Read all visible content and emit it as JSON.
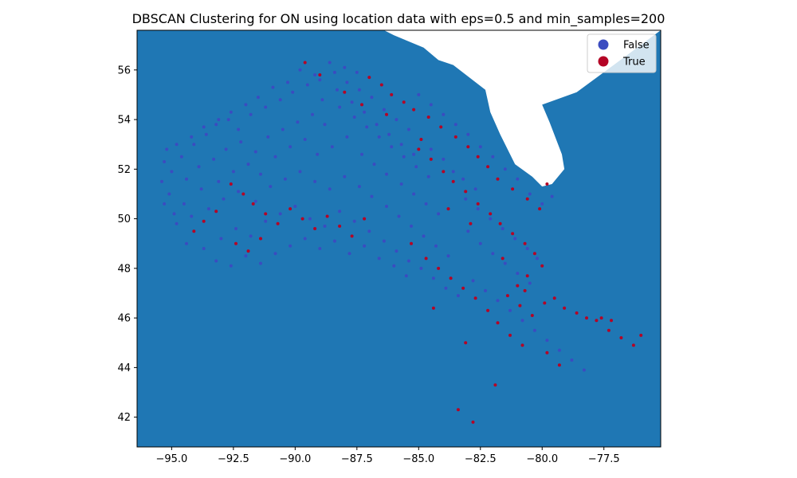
{
  "chart_data": {
    "type": "scatter",
    "title": "DBSCAN Clustering for ON using location data with eps=0.5 and min_samples=200",
    "xlabel": "",
    "ylabel": "",
    "xlim": [
      -96.4,
      -75.2
    ],
    "ylim": [
      40.8,
      57.6
    ],
    "xticks": [
      -95.0,
      -92.5,
      -90.0,
      -87.5,
      -85.0,
      -82.5,
      -80.0,
      -77.5
    ],
    "xtick_labels": [
      "−95.0",
      "−92.5",
      "−90.0",
      "−87.5",
      "−85.0",
      "−82.5",
      "−80.0",
      "−77.5"
    ],
    "yticks": [
      42,
      44,
      46,
      48,
      50,
      52,
      54,
      56
    ],
    "ytick_labels": [
      "42",
      "44",
      "46",
      "48",
      "50",
      "52",
      "54",
      "56"
    ],
    "grid": false,
    "legend_position": "top-right",
    "map_color": "#1f77b4",
    "map_outline": [
      [
        -96.4,
        57.6
      ],
      [
        -86.9,
        57.6
      ],
      [
        -86.4,
        57.6
      ],
      [
        -86.0,
        57.4
      ],
      [
        -84.8,
        56.9
      ],
      [
        -84.2,
        56.4
      ],
      [
        -83.6,
        56.2
      ],
      [
        -82.3,
        55.2
      ],
      [
        -82.1,
        54.3
      ],
      [
        -81.7,
        53.4
      ],
      [
        -81.1,
        52.2
      ],
      [
        -80.4,
        51.7
      ],
      [
        -80.0,
        51.3
      ],
      [
        -79.6,
        51.4
      ],
      [
        -79.1,
        52.0
      ],
      [
        -79.2,
        52.6
      ],
      [
        -79.7,
        53.9
      ],
      [
        -80.0,
        54.6
      ],
      [
        -78.6,
        55.1
      ],
      [
        -75.2,
        57.6
      ],
      [
        -75.2,
        40.8
      ],
      [
        -96.4,
        40.8
      ]
    ],
    "series": [
      {
        "name": "False",
        "color": "#3b4cc0",
        "points": [
          [
            -95.2,
            52.8
          ],
          [
            -94.6,
            52.5
          ],
          [
            -94.1,
            53.0
          ],
          [
            -93.6,
            53.4
          ],
          [
            -93.2,
            53.8
          ],
          [
            -92.7,
            54.0
          ],
          [
            -92.3,
            53.6
          ],
          [
            -91.8,
            54.2
          ],
          [
            -91.2,
            54.5
          ],
          [
            -90.6,
            54.8
          ],
          [
            -90.1,
            55.1
          ],
          [
            -89.5,
            55.4
          ],
          [
            -89.0,
            55.6
          ],
          [
            -88.4,
            55.9
          ],
          [
            -87.9,
            55.5
          ],
          [
            -87.4,
            55.2
          ],
          [
            -86.9,
            54.9
          ],
          [
            -86.4,
            54.4
          ],
          [
            -85.9,
            54.0
          ],
          [
            -85.4,
            53.6
          ],
          [
            -95.0,
            51.9
          ],
          [
            -94.4,
            51.6
          ],
          [
            -93.9,
            52.1
          ],
          [
            -93.3,
            52.4
          ],
          [
            -92.8,
            52.8
          ],
          [
            -92.2,
            53.1
          ],
          [
            -91.6,
            52.7
          ],
          [
            -91.1,
            53.3
          ],
          [
            -90.5,
            53.6
          ],
          [
            -89.9,
            53.9
          ],
          [
            -89.3,
            54.2
          ],
          [
            -88.8,
            53.8
          ],
          [
            -88.2,
            54.5
          ],
          [
            -87.6,
            54.1
          ],
          [
            -87.1,
            53.7
          ],
          [
            -86.6,
            53.3
          ],
          [
            -86.1,
            52.9
          ],
          [
            -85.6,
            52.5
          ],
          [
            -85.1,
            52.1
          ],
          [
            -84.6,
            51.7
          ],
          [
            -95.1,
            51.0
          ],
          [
            -94.5,
            50.6
          ],
          [
            -93.8,
            51.2
          ],
          [
            -93.1,
            51.5
          ],
          [
            -92.5,
            51.9
          ],
          [
            -91.9,
            52.2
          ],
          [
            -91.4,
            51.8
          ],
          [
            -90.8,
            52.5
          ],
          [
            -90.2,
            52.9
          ],
          [
            -89.6,
            53.2
          ],
          [
            -89.1,
            52.6
          ],
          [
            -88.5,
            52.9
          ],
          [
            -87.9,
            53.3
          ],
          [
            -87.3,
            52.6
          ],
          [
            -86.8,
            52.2
          ],
          [
            -86.3,
            51.8
          ],
          [
            -85.7,
            51.4
          ],
          [
            -85.2,
            51.0
          ],
          [
            -84.7,
            50.6
          ],
          [
            -84.2,
            50.2
          ],
          [
            -94.8,
            49.8
          ],
          [
            -94.2,
            50.1
          ],
          [
            -93.5,
            50.4
          ],
          [
            -92.9,
            50.8
          ],
          [
            -92.3,
            51.1
          ],
          [
            -91.6,
            50.7
          ],
          [
            -91.0,
            51.3
          ],
          [
            -90.4,
            51.6
          ],
          [
            -89.8,
            51.9
          ],
          [
            -89.2,
            51.5
          ],
          [
            -88.6,
            51.2
          ],
          [
            -88.0,
            51.7
          ],
          [
            -87.4,
            51.3
          ],
          [
            -86.9,
            50.9
          ],
          [
            -86.3,
            50.5
          ],
          [
            -85.8,
            50.1
          ],
          [
            -85.3,
            49.7
          ],
          [
            -84.8,
            49.3
          ],
          [
            -84.3,
            48.9
          ],
          [
            -83.8,
            48.5
          ],
          [
            -94.4,
            49.0
          ],
          [
            -93.7,
            48.8
          ],
          [
            -93.0,
            49.2
          ],
          [
            -92.4,
            49.6
          ],
          [
            -91.8,
            49.3
          ],
          [
            -91.2,
            49.9
          ],
          [
            -90.6,
            50.2
          ],
          [
            -90.0,
            50.5
          ],
          [
            -89.4,
            50.0
          ],
          [
            -88.8,
            49.7
          ],
          [
            -88.2,
            50.3
          ],
          [
            -87.6,
            49.9
          ],
          [
            -87.0,
            49.5
          ],
          [
            -86.4,
            49.1
          ],
          [
            -85.9,
            48.7
          ],
          [
            -85.4,
            48.3
          ],
          [
            -84.9,
            48.0
          ],
          [
            -84.4,
            47.6
          ],
          [
            -83.9,
            47.2
          ],
          [
            -83.4,
            46.9
          ],
          [
            -93.2,
            48.3
          ],
          [
            -92.6,
            48.1
          ],
          [
            -92.0,
            48.5
          ],
          [
            -91.4,
            48.2
          ],
          [
            -90.8,
            48.6
          ],
          [
            -90.2,
            48.9
          ],
          [
            -89.6,
            49.2
          ],
          [
            -89.0,
            48.8
          ],
          [
            -88.4,
            49.1
          ],
          [
            -87.8,
            48.6
          ],
          [
            -87.2,
            48.9
          ],
          [
            -86.6,
            48.4
          ],
          [
            -86.0,
            48.1
          ],
          [
            -85.5,
            47.7
          ],
          [
            -83.0,
            49.5
          ],
          [
            -82.5,
            49.0
          ],
          [
            -82.0,
            48.6
          ],
          [
            -81.5,
            48.2
          ],
          [
            -81.0,
            47.8
          ],
          [
            -80.5,
            47.4
          ],
          [
            -90.3,
            55.5
          ],
          [
            -89.8,
            56.0
          ],
          [
            -89.2,
            55.8
          ],
          [
            -88.6,
            56.3
          ],
          [
            -88.0,
            56.1
          ],
          [
            -87.5,
            55.9
          ],
          [
            -85.0,
            55.0
          ],
          [
            -84.5,
            54.6
          ],
          [
            -84.0,
            54.2
          ],
          [
            -83.5,
            53.8
          ],
          [
            -83.0,
            53.4
          ],
          [
            -82.5,
            52.9
          ],
          [
            -82.0,
            52.5
          ],
          [
            -81.5,
            52.0
          ],
          [
            -81.0,
            51.6
          ],
          [
            -80.5,
            51.0
          ],
          [
            -80.0,
            50.6
          ],
          [
            -79.6,
            50.9
          ],
          [
            -83.2,
            51.6
          ],
          [
            -82.7,
            51.2
          ],
          [
            -84.5,
            52.8
          ],
          [
            -84.0,
            52.4
          ],
          [
            -83.6,
            51.9
          ],
          [
            -83.1,
            50.8
          ],
          [
            -82.6,
            50.4
          ],
          [
            -82.1,
            50.0
          ],
          [
            -81.6,
            49.6
          ],
          [
            -81.1,
            49.2
          ],
          [
            -80.6,
            48.8
          ],
          [
            -80.2,
            48.4
          ],
          [
            -82.8,
            47.5
          ],
          [
            -82.3,
            47.1
          ],
          [
            -81.8,
            46.7
          ],
          [
            -81.3,
            46.3
          ],
          [
            -80.8,
            45.9
          ],
          [
            -80.3,
            45.5
          ],
          [
            -79.8,
            45.1
          ],
          [
            -79.3,
            44.7
          ],
          [
            -78.8,
            44.3
          ],
          [
            -78.3,
            43.9
          ],
          [
            -91.5,
            54.9
          ],
          [
            -90.9,
            55.3
          ],
          [
            -92.0,
            54.6
          ],
          [
            -92.6,
            54.3
          ],
          [
            -93.1,
            54.0
          ],
          [
            -93.7,
            53.7
          ],
          [
            -94.2,
            53.3
          ],
          [
            -94.8,
            53.0
          ],
          [
            -95.3,
            52.3
          ],
          [
            -95.4,
            51.5
          ],
          [
            -95.3,
            50.6
          ],
          [
            -94.9,
            50.2
          ],
          [
            -88.9,
            54.8
          ],
          [
            -88.3,
            55.2
          ],
          [
            -87.7,
            54.7
          ],
          [
            -87.2,
            54.3
          ],
          [
            -86.7,
            53.8
          ],
          [
            -86.2,
            53.4
          ],
          [
            -85.7,
            53.0
          ],
          [
            -85.2,
            52.6
          ]
        ]
      },
      {
        "name": "True",
        "color": "#b40426",
        "points": [
          [
            -89.6,
            56.3
          ],
          [
            -89.0,
            55.8
          ],
          [
            -87.0,
            55.7
          ],
          [
            -86.5,
            55.4
          ],
          [
            -86.1,
            55.0
          ],
          [
            -85.6,
            54.7
          ],
          [
            -85.2,
            54.4
          ],
          [
            -84.6,
            54.1
          ],
          [
            -84.1,
            53.7
          ],
          [
            -83.5,
            53.3
          ],
          [
            -83.0,
            52.9
          ],
          [
            -82.6,
            52.5
          ],
          [
            -82.2,
            52.1
          ],
          [
            -81.8,
            51.6
          ],
          [
            -81.2,
            51.2
          ],
          [
            -80.6,
            50.8
          ],
          [
            -80.1,
            50.4
          ],
          [
            -79.8,
            51.4
          ],
          [
            -85.0,
            52.8
          ],
          [
            -84.5,
            52.4
          ],
          [
            -84.0,
            51.9
          ],
          [
            -83.6,
            51.5
          ],
          [
            -83.1,
            51.1
          ],
          [
            -82.6,
            50.6
          ],
          [
            -82.1,
            50.2
          ],
          [
            -81.7,
            49.8
          ],
          [
            -81.2,
            49.4
          ],
          [
            -80.7,
            49.0
          ],
          [
            -80.3,
            48.6
          ],
          [
            -80.0,
            48.1
          ],
          [
            -80.6,
            47.7
          ],
          [
            -81.0,
            47.3
          ],
          [
            -81.4,
            46.9
          ],
          [
            -80.9,
            46.5
          ],
          [
            -80.4,
            46.1
          ],
          [
            -79.9,
            46.6
          ],
          [
            -92.6,
            51.4
          ],
          [
            -92.1,
            51.0
          ],
          [
            -91.7,
            50.6
          ],
          [
            -91.2,
            50.2
          ],
          [
            -90.7,
            49.8
          ],
          [
            -90.2,
            50.4
          ],
          [
            -89.7,
            50.0
          ],
          [
            -89.2,
            49.6
          ],
          [
            -88.7,
            50.1
          ],
          [
            -88.2,
            49.7
          ],
          [
            -87.7,
            49.3
          ],
          [
            -87.2,
            50.0
          ],
          [
            -93.2,
            50.3
          ],
          [
            -93.7,
            49.9
          ],
          [
            -94.1,
            49.5
          ],
          [
            -92.4,
            49.0
          ],
          [
            -91.9,
            48.7
          ],
          [
            -91.4,
            49.2
          ],
          [
            -84.7,
            48.4
          ],
          [
            -84.2,
            48.0
          ],
          [
            -83.7,
            47.6
          ],
          [
            -83.2,
            47.2
          ],
          [
            -82.7,
            46.8
          ],
          [
            -82.2,
            46.3
          ],
          [
            -81.8,
            45.8
          ],
          [
            -81.3,
            45.3
          ],
          [
            -80.8,
            44.9
          ],
          [
            -79.8,
            44.6
          ],
          [
            -79.3,
            44.1
          ],
          [
            -77.8,
            45.9
          ],
          [
            -77.3,
            45.5
          ],
          [
            -76.8,
            45.2
          ],
          [
            -76.3,
            44.9
          ],
          [
            -76.0,
            45.3
          ],
          [
            -81.9,
            43.3
          ],
          [
            -83.4,
            42.3
          ],
          [
            -82.8,
            41.8
          ],
          [
            -83.1,
            45.0
          ],
          [
            -84.4,
            46.4
          ],
          [
            -85.3,
            49.0
          ],
          [
            -88.0,
            55.1
          ],
          [
            -87.3,
            54.6
          ],
          [
            -86.3,
            54.2
          ],
          [
            -84.9,
            53.2
          ],
          [
            -83.8,
            50.4
          ],
          [
            -82.9,
            49.8
          ],
          [
            -81.6,
            48.4
          ],
          [
            -80.7,
            47.1
          ],
          [
            -79.5,
            46.8
          ],
          [
            -79.1,
            46.4
          ],
          [
            -78.6,
            46.2
          ],
          [
            -78.2,
            46.0
          ],
          [
            -77.6,
            46.0
          ],
          [
            -77.2,
            45.9
          ]
        ]
      }
    ]
  }
}
